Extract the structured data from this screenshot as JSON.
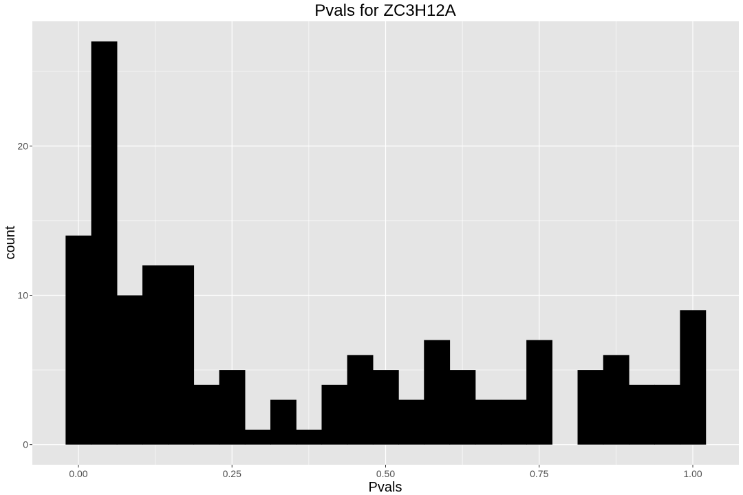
{
  "chart_data": {
    "type": "bar",
    "title": "Pvals for ZC3H12A",
    "xlabel": "Pvals",
    "ylabel": "count",
    "bin_width": 0.0417,
    "bins": [
      {
        "center": 0.0,
        "count": 14
      },
      {
        "center": 0.0417,
        "count": 27
      },
      {
        "center": 0.0833,
        "count": 10
      },
      {
        "center": 0.125,
        "count": 12
      },
      {
        "center": 0.1667,
        "count": 12
      },
      {
        "center": 0.2083,
        "count": 4
      },
      {
        "center": 0.25,
        "count": 5
      },
      {
        "center": 0.2917,
        "count": 1
      },
      {
        "center": 0.3333,
        "count": 3
      },
      {
        "center": 0.375,
        "count": 1
      },
      {
        "center": 0.4167,
        "count": 4
      },
      {
        "center": 0.4583,
        "count": 6
      },
      {
        "center": 0.5,
        "count": 5
      },
      {
        "center": 0.5417,
        "count": 3
      },
      {
        "center": 0.5833,
        "count": 7
      },
      {
        "center": 0.625,
        "count": 5
      },
      {
        "center": 0.6667,
        "count": 3
      },
      {
        "center": 0.7083,
        "count": 3
      },
      {
        "center": 0.75,
        "count": 7
      },
      {
        "center": 0.7917,
        "count": 0
      },
      {
        "center": 0.8333,
        "count": 5
      },
      {
        "center": 0.875,
        "count": 6
      },
      {
        "center": 0.9167,
        "count": 4
      },
      {
        "center": 0.9583,
        "count": 4
      },
      {
        "center": 1.0,
        "count": 9
      }
    ],
    "xlim": [
      -0.075,
      1.075
    ],
    "ylim": [
      -1.35,
      28.35
    ],
    "x_ticks": [
      {
        "value": 0.0,
        "label": "0.00"
      },
      {
        "value": 0.25,
        "label": "0.25"
      },
      {
        "value": 0.5,
        "label": "0.50"
      },
      {
        "value": 0.75,
        "label": "0.75"
      },
      {
        "value": 1.0,
        "label": "1.00"
      }
    ],
    "y_ticks": [
      {
        "value": 0,
        "label": "0"
      },
      {
        "value": 10,
        "label": "10"
      },
      {
        "value": 20,
        "label": "20"
      }
    ],
    "grid": true,
    "legend": "none",
    "colors": {
      "panel": "#e5e5e5",
      "grid": "#ffffff",
      "bar": "#000000"
    }
  }
}
